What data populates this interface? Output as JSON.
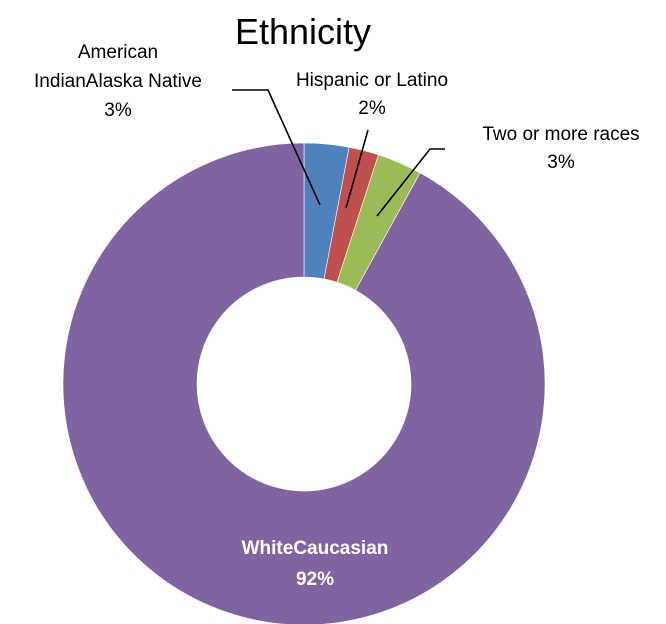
{
  "chart_data": {
    "type": "pie",
    "title": "Ethnicity",
    "donut": true,
    "slices": [
      {
        "label_lines": [
          "American",
          "IndianAlaska Native"
        ],
        "value": 3,
        "value_label": "3%",
        "color": "#4F81BD"
      },
      {
        "label_lines": [
          "Hispanic or Latino"
        ],
        "value": 2,
        "value_label": "2%",
        "color": "#C0504D"
      },
      {
        "label_lines": [
          "Two or more races"
        ],
        "value": 3,
        "value_label": "3%",
        "color": "#9BBB59"
      },
      {
        "label_lines": [
          "WhiteCaucasian"
        ],
        "value": 92,
        "value_label": "92%",
        "color": "#8064A2"
      }
    ]
  }
}
